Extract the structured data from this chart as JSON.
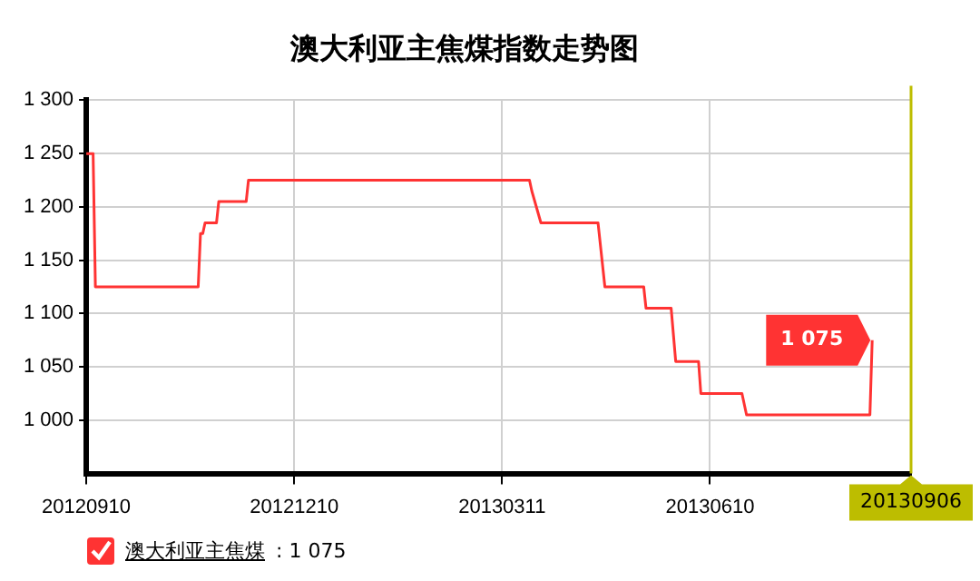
{
  "chart_data": {
    "type": "line",
    "title": "澳大利亚主焦煤指数走势图",
    "x": [
      "2012-09-10",
      "2012-09-13",
      "2012-09-14",
      "2012-10-29",
      "2012-10-30",
      "2012-10-31",
      "2012-11-01",
      "2012-11-06",
      "2012-11-07",
      "2012-11-19",
      "2012-11-20",
      "2013-03-23",
      "2013-03-24",
      "2013-03-28",
      "2013-04-22",
      "2013-04-25",
      "2013-05-12",
      "2013-05-13",
      "2013-05-24",
      "2013-05-26",
      "2013-06-05",
      "2013-06-06",
      "2013-06-24",
      "2013-06-26",
      "2013-08-19",
      "2013-08-20"
    ],
    "series": [
      {
        "name": "澳大利亚主焦煤",
        "color": "#ff3333",
        "values": [
          1250,
          1250,
          1125,
          1125,
          1175,
          1175,
          1185,
          1185,
          1205,
          1205,
          1225,
          1225,
          1215,
          1185,
          1185,
          1125,
          1125,
          1105,
          1105,
          1055,
          1055,
          1025,
          1025,
          1005,
          1005,
          1075
        ],
        "value_labels": [
          null,
          null,
          null,
          null,
          null,
          null,
          null,
          null,
          null,
          null,
          null,
          null,
          null,
          null,
          null,
          null,
          null,
          null,
          null,
          null,
          null,
          null,
          null,
          null,
          null,
          "1 075"
        ]
      }
    ],
    "xlim": [
      "2012-09-10",
      "2013-09-06"
    ],
    "xticks": [
      {
        "value": "2012-09-10",
        "label": "20120910"
      },
      {
        "value": "2012-12-10",
        "label": "20121210"
      },
      {
        "value": "2013-03-11",
        "label": "20130311"
      },
      {
        "value": "2013-06-10",
        "label": "20130610"
      }
    ],
    "ylim": [
      950,
      1300
    ],
    "yticks": [
      {
        "value": 1000,
        "label": "1 000"
      },
      {
        "value": 1050,
        "label": "1 050"
      },
      {
        "value": 1100,
        "label": "1 100"
      },
      {
        "value": 1150,
        "label": "1 150"
      },
      {
        "value": 1200,
        "label": "1 200"
      },
      {
        "value": 1250,
        "label": "1 250"
      },
      {
        "value": 1300,
        "label": "1 300"
      }
    ],
    "ref_lines": [
      {
        "axis": "x",
        "value": "2013-09-06",
        "label": "20130906",
        "color": "#bdbd00"
      }
    ],
    "annotations": [
      ": 1 075"
    ],
    "grid": true,
    "legend": "bottom left",
    "marker": "none",
    "line_style": "solid"
  }
}
